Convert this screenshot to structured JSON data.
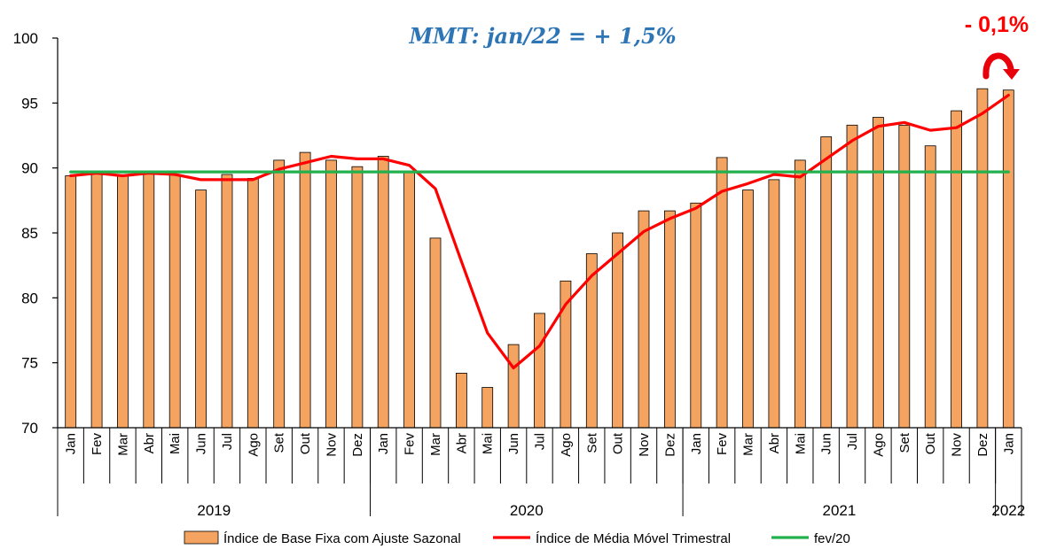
{
  "chart_data": {
    "type": "bar",
    "title": "",
    "xlabel": "",
    "ylabel": "",
    "ylim": [
      70,
      100
    ],
    "yticks": [
      70,
      75,
      80,
      85,
      90,
      95,
      100
    ],
    "grid": false,
    "legend_position": "bottom",
    "categories": [
      "Jan",
      "Fev",
      "Mar",
      "Abr",
      "Mai",
      "Jun",
      "Jul",
      "Ago",
      "Set",
      "Out",
      "Nov",
      "Dez",
      "Jan",
      "Fev",
      "Mar",
      "Abr",
      "Mai",
      "Jun",
      "Jul",
      "Ago",
      "Set",
      "Out",
      "Nov",
      "Dez",
      "Jan",
      "Fev",
      "Mar",
      "Abr",
      "Mai",
      "Jun",
      "Jul",
      "Ago",
      "Set",
      "Out",
      "Nov",
      "Dez",
      "Jan"
    ],
    "year_groups": [
      {
        "label": "2019",
        "start": 0,
        "end": 11
      },
      {
        "label": "2020",
        "start": 12,
        "end": 23
      },
      {
        "label": "2021",
        "start": 24,
        "end": 35
      },
      {
        "label": "2022",
        "start": 36,
        "end": 36
      }
    ],
    "series": [
      {
        "name": "Índice de Base Fixa com Ajuste Sazonal",
        "kind": "bar",
        "color": "#f4a460",
        "values": [
          89.4,
          89.7,
          89.4,
          89.7,
          89.5,
          88.3,
          89.5,
          89.2,
          90.6,
          91.2,
          90.6,
          90.1,
          90.9,
          89.7,
          84.6,
          74.2,
          73.1,
          76.4,
          78.8,
          81.3,
          83.4,
          85.0,
          86.7,
          86.7,
          87.3,
          90.8,
          88.3,
          89.1,
          90.6,
          92.4,
          93.3,
          93.9,
          93.3,
          91.7,
          94.4,
          96.1,
          96.0
        ]
      },
      {
        "name": "Índice de Média Móvel Trimestral",
        "kind": "line",
        "color": "#ff0000",
        "values": [
          89.4,
          89.6,
          89.4,
          89.6,
          89.5,
          89.1,
          89.1,
          89.1,
          89.9,
          90.4,
          90.9,
          90.7,
          90.7,
          90.2,
          88.4,
          82.8,
          77.3,
          74.6,
          76.3,
          79.5,
          81.7,
          83.4,
          85.1,
          86.1,
          86.9,
          88.2,
          88.8,
          89.5,
          89.3,
          90.7,
          92.1,
          93.2,
          93.5,
          92.9,
          93.1,
          94.2,
          95.6
        ]
      },
      {
        "name": "fev/20",
        "kind": "line",
        "color": "#22b14c",
        "values": [
          89.7,
          89.7,
          89.7,
          89.7,
          89.7,
          89.7,
          89.7,
          89.7,
          89.7,
          89.7,
          89.7,
          89.7,
          89.7,
          89.7,
          89.7,
          89.7,
          89.7,
          89.7,
          89.7,
          89.7,
          89.7,
          89.7,
          89.7,
          89.7,
          89.7,
          89.7,
          89.7,
          89.7,
          89.7,
          89.7,
          89.7,
          89.7,
          89.7,
          89.7,
          89.7,
          89.7,
          89.7
        ]
      }
    ],
    "annotations": [
      {
        "text": "MMT: jan/22 =  + 1,5%",
        "color": "#2e75b6"
      },
      {
        "text": "- 0,1%",
        "color": "#ff0000"
      }
    ]
  }
}
